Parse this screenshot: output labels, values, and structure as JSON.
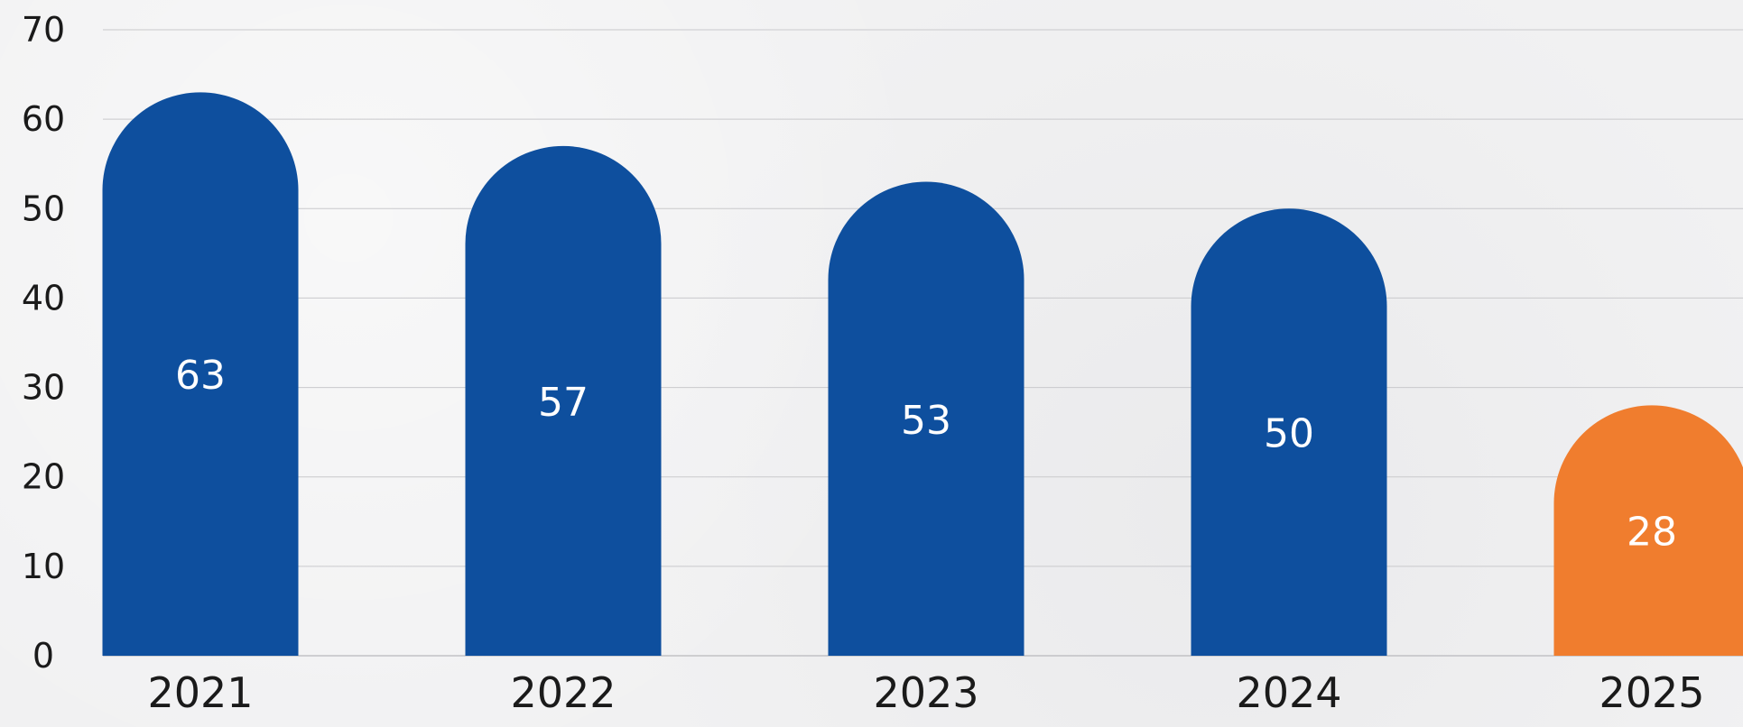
{
  "chart_data": {
    "type": "bar",
    "categories": [
      "2021",
      "2022",
      "2023",
      "2024",
      "2025"
    ],
    "values": [
      63,
      57,
      53,
      50,
      28
    ],
    "data_labels": [
      "63",
      "57",
      "53",
      "50",
      "28"
    ],
    "y_ticks": [
      "0",
      "10",
      "20",
      "30",
      "40",
      "50",
      "60",
      "70"
    ],
    "ylim": [
      0,
      70
    ],
    "grid": true,
    "title": "",
    "xlabel": "",
    "ylabel": "",
    "colors": [
      "#0e4f9e",
      "#0e4f9e",
      "#0e4f9e",
      "#0e4f9e",
      "#f07d2e"
    ]
  }
}
